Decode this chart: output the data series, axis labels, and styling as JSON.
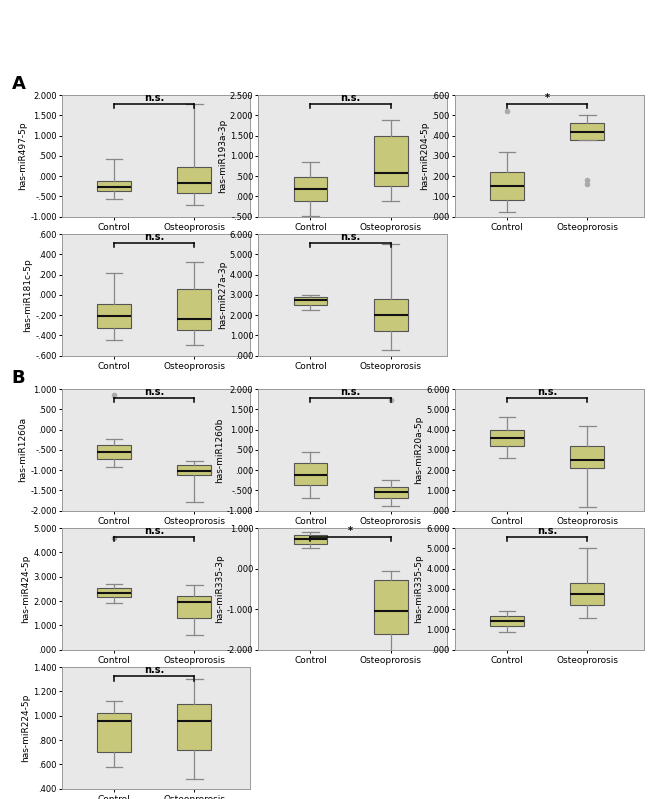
{
  "bg_color": "#e8e8e8",
  "box_color": "#c8c87a",
  "box_edge_color": "#555555",
  "median_color": "#111111",
  "whisker_color": "#888888",
  "cap_color": "#888888",
  "outlier_color": "#aaaaaa",
  "plots": [
    {
      "panel": "A",
      "ylabel": "has-miR497-5p",
      "ylim": [
        -1.0,
        2.0
      ],
      "yticks": [
        -1.0,
        -0.5,
        0.0,
        0.5,
        1.0,
        1.5,
        2.0
      ],
      "ytick_labels": [
        "-1.000",
        "-.500",
        ".000",
        ".500",
        "1.000",
        "1.500",
        "2.000"
      ],
      "sig": "n.s.",
      "control": {
        "q1": -0.37,
        "median": -0.28,
        "q3": -0.13,
        "whislo": -0.56,
        "whishi": 0.42,
        "outliers": []
      },
      "osteo": {
        "q1": -0.42,
        "median": -0.18,
        "q3": 0.22,
        "whislo": -0.72,
        "whishi": 1.78,
        "outliers": []
      }
    },
    {
      "panel": "A",
      "ylabel": "has-miR193a-3p",
      "ylim": [
        -0.5,
        2.5
      ],
      "yticks": [
        -0.5,
        0.0,
        0.5,
        1.0,
        1.5,
        2.0,
        2.5
      ],
      "ytick_labels": [
        "-.500",
        ".000",
        ".500",
        "1.000",
        "1.500",
        "2.000",
        "2.500"
      ],
      "sig": "n.s.",
      "control": {
        "q1": -0.12,
        "median": 0.18,
        "q3": 0.48,
        "whislo": -0.48,
        "whishi": 0.85,
        "outliers": []
      },
      "osteo": {
        "q1": 0.25,
        "median": 0.58,
        "q3": 1.48,
        "whislo": -0.12,
        "whishi": 1.88,
        "outliers": []
      }
    },
    {
      "panel": "A",
      "ylabel": "has-miR204-5p",
      "ylim": [
        0.0,
        0.6
      ],
      "yticks": [
        0.0,
        0.1,
        0.2,
        0.3,
        0.4,
        0.5,
        0.6
      ],
      "ytick_labels": [
        ".000",
        ".100",
        ".200",
        ".300",
        ".400",
        ".500",
        ".600"
      ],
      "sig": "*",
      "control": {
        "q1": 0.08,
        "median": 0.15,
        "q3": 0.22,
        "whislo": 0.02,
        "whishi": 0.32,
        "outliers": [
          0.52
        ]
      },
      "osteo": {
        "q1": 0.38,
        "median": 0.42,
        "q3": 0.46,
        "whislo": 0.38,
        "whishi": 0.5,
        "outliers": [
          0.16,
          0.18
        ]
      }
    },
    {
      "panel": "A",
      "ylabel": "has-miR181c-5p",
      "ylim": [
        -0.6,
        0.6
      ],
      "yticks": [
        -0.6,
        -0.4,
        -0.2,
        0.0,
        0.2,
        0.4,
        0.6
      ],
      "ytick_labels": [
        "-.600",
        "-.400",
        "-.200",
        ".000",
        ".200",
        ".400",
        ".600"
      ],
      "sig": "n.s.",
      "control": {
        "q1": -0.33,
        "median": -0.21,
        "q3": -0.09,
        "whislo": -0.45,
        "whishi": 0.22,
        "outliers": []
      },
      "osteo": {
        "q1": -0.35,
        "median": -0.24,
        "q3": 0.06,
        "whislo": -0.5,
        "whishi": 0.32,
        "outliers": []
      }
    },
    {
      "panel": "A",
      "ylabel": "has-miR27a-3p",
      "ylim": [
        0.0,
        6.0
      ],
      "yticks": [
        0.0,
        1.0,
        2.0,
        3.0,
        4.0,
        5.0,
        6.0
      ],
      "ytick_labels": [
        ".000",
        "1.000",
        "2.000",
        "3.000",
        "4.000",
        "5.000",
        "6.000"
      ],
      "sig": "n.s.",
      "control": {
        "q1": 2.52,
        "median": 2.73,
        "q3": 2.88,
        "whislo": 2.25,
        "whishi": 3.0,
        "outliers": []
      },
      "osteo": {
        "q1": 1.2,
        "median": 2.0,
        "q3": 2.8,
        "whislo": 0.25,
        "whishi": 5.5,
        "outliers": []
      }
    },
    {
      "panel": "B",
      "ylabel": "has-miR1260a",
      "ylim": [
        -2.0,
        1.0
      ],
      "yticks": [
        -2.0,
        -1.5,
        -1.0,
        -0.5,
        0.0,
        0.5,
        1.0
      ],
      "ytick_labels": [
        "-2.000",
        "-1.500",
        "-1.000",
        "-.500",
        ".000",
        ".500",
        "1.000"
      ],
      "sig": "n.s.",
      "control": {
        "q1": -0.72,
        "median": -0.55,
        "q3": -0.38,
        "whislo": -0.92,
        "whishi": -0.22,
        "outliers": [
          0.85
        ]
      },
      "osteo": {
        "q1": -1.12,
        "median": -1.02,
        "q3": -0.88,
        "whislo": -1.78,
        "whishi": -0.78,
        "outliers": []
      }
    },
    {
      "panel": "B",
      "ylabel": "has-miR1260b",
      "ylim": [
        -1.0,
        2.0
      ],
      "yticks": [
        -1.0,
        -0.5,
        0.0,
        0.5,
        1.0,
        1.5,
        2.0
      ],
      "ytick_labels": [
        "-1.000",
        "-.500",
        ".000",
        ".500",
        "1.000",
        "1.500",
        "2.000"
      ],
      "sig": "n.s.",
      "control": {
        "q1": -0.38,
        "median": -0.12,
        "q3": 0.18,
        "whislo": -0.68,
        "whishi": 0.45,
        "outliers": []
      },
      "osteo": {
        "q1": -0.68,
        "median": -0.55,
        "q3": -0.42,
        "whislo": -0.88,
        "whishi": -0.25,
        "outliers": [
          1.72
        ]
      }
    },
    {
      "panel": "B",
      "ylabel": "has-miR20a-5p",
      "ylim": [
        0.0,
        6.0
      ],
      "yticks": [
        0.0,
        1.0,
        2.0,
        3.0,
        4.0,
        5.0,
        6.0
      ],
      "ytick_labels": [
        ".000",
        "1.000",
        "2.000",
        "3.000",
        "4.000",
        "5.000",
        "6.000"
      ],
      "sig": "n.s.",
      "control": {
        "q1": 3.2,
        "median": 3.6,
        "q3": 4.0,
        "whislo": 2.6,
        "whishi": 4.6,
        "outliers": []
      },
      "osteo": {
        "q1": 2.1,
        "median": 2.5,
        "q3": 3.2,
        "whislo": 0.2,
        "whishi": 4.2,
        "outliers": []
      }
    },
    {
      "panel": "B",
      "ylabel": "has-miR424-5p",
      "ylim": [
        0.0,
        5.0
      ],
      "yticks": [
        0.0,
        1.0,
        2.0,
        3.0,
        4.0,
        5.0
      ],
      "ytick_labels": [
        ".000",
        "1.000",
        "2.000",
        "3.000",
        "4.000",
        "5.000"
      ],
      "sig": "n.s.",
      "control": {
        "q1": 2.18,
        "median": 2.32,
        "q3": 2.52,
        "whislo": 1.92,
        "whishi": 2.68,
        "outliers": [
          4.6
        ]
      },
      "osteo": {
        "q1": 1.28,
        "median": 1.95,
        "q3": 2.22,
        "whislo": 0.62,
        "whishi": 2.65,
        "outliers": []
      }
    },
    {
      "panel": "B",
      "ylabel": "has-miR335-3p",
      "ylim": [
        -2.0,
        1.0
      ],
      "yticks": [
        -2.0,
        -1.0,
        0.0,
        1.0
      ],
      "ytick_labels": [
        "-2.000",
        "-1.000",
        ".000",
        "1.000"
      ],
      "sig": "*",
      "control": {
        "q1": 0.62,
        "median": 0.72,
        "q3": 0.82,
        "whislo": 0.52,
        "whishi": 0.9,
        "outliers": []
      },
      "osteo": {
        "q1": -1.62,
        "median": -1.05,
        "q3": -0.28,
        "whislo": -2.18,
        "whishi": -0.05,
        "outliers": []
      }
    },
    {
      "panel": "B",
      "ylabel": "has-miR335-5p",
      "ylim": [
        0.0,
        6.0
      ],
      "yticks": [
        0.0,
        1.0,
        2.0,
        3.0,
        4.0,
        5.0,
        6.0
      ],
      "ytick_labels": [
        ".000",
        "1.000",
        "2.000",
        "3.000",
        "4.000",
        "5.000",
        "6.000"
      ],
      "sig": "n.s.",
      "control": {
        "q1": 1.18,
        "median": 1.42,
        "q3": 1.68,
        "whislo": 0.88,
        "whishi": 1.92,
        "outliers": []
      },
      "osteo": {
        "q1": 2.18,
        "median": 2.75,
        "q3": 3.28,
        "whislo": 1.58,
        "whishi": 5.0,
        "outliers": []
      }
    },
    {
      "panel": "B",
      "ylabel": "has-miR224-5p",
      "ylim": [
        0.4,
        1.4
      ],
      "yticks": [
        0.4,
        0.6,
        0.8,
        1.0,
        1.2,
        1.4
      ],
      "ytick_labels": [
        ".400",
        ".600",
        ".800",
        "1.000",
        "1.200",
        "1.400"
      ],
      "sig": "n.s.",
      "control": {
        "q1": 0.7,
        "median": 0.96,
        "q3": 1.02,
        "whislo": 0.58,
        "whishi": 1.12,
        "outliers": []
      },
      "osteo": {
        "q1": 0.72,
        "median": 0.96,
        "q3": 1.1,
        "whislo": 0.48,
        "whishi": 1.3,
        "outliers": []
      }
    }
  ]
}
